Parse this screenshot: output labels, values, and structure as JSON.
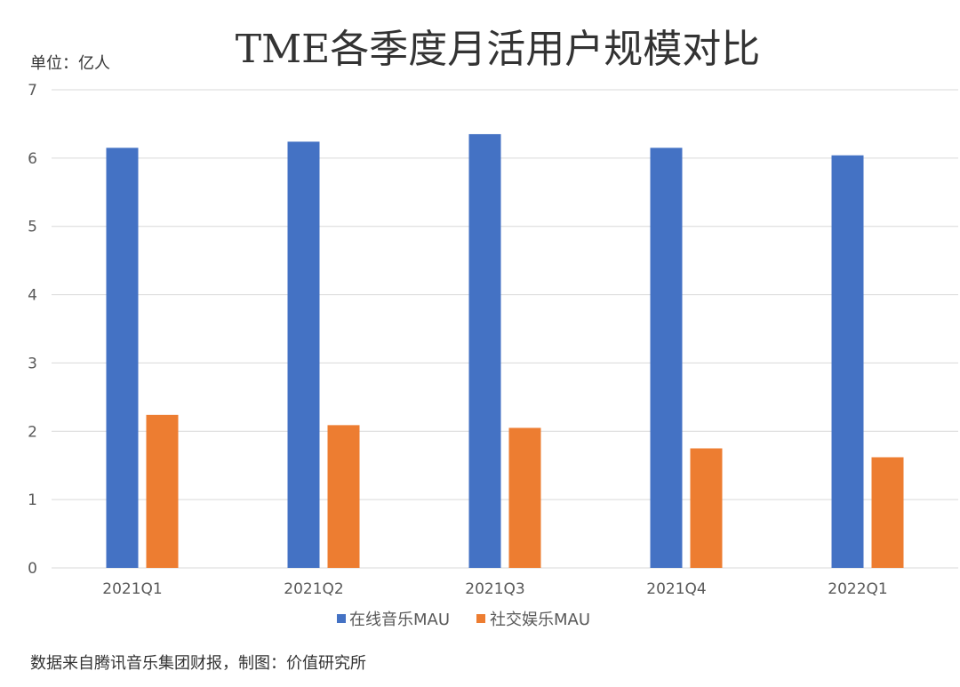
{
  "chart_data": {
    "type": "bar",
    "title": "TME各季度月活用户规模对比",
    "unit_label": "单位：亿人",
    "categories": [
      "2021Q1",
      "2021Q2",
      "2021Q3",
      "2021Q4",
      "2022Q1"
    ],
    "series": [
      {
        "name": "在线音乐MAU",
        "values": [
          6.15,
          6.24,
          6.35,
          6.15,
          6.04
        ],
        "color": "#4472c4"
      },
      {
        "name": "社交娱乐MAU",
        "values": [
          2.24,
          2.09,
          2.05,
          1.75,
          1.62
        ],
        "color": "#ed7d31"
      }
    ],
    "y_ticks": [
      "0",
      "1",
      "2",
      "3",
      "4",
      "5",
      "6",
      "7"
    ],
    "ylim": [
      0,
      7
    ],
    "xlabel": "",
    "ylabel": "",
    "grid": true,
    "legend_position": "bottom",
    "source": "数据来自腾讯音乐集团财报，制图：价值研究所"
  }
}
